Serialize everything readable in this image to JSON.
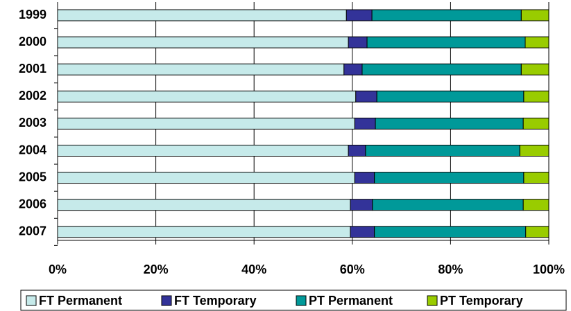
{
  "chart_data": {
    "type": "stacked-bar-horizontal",
    "categories": [
      "1999",
      "2000",
      "2001",
      "2002",
      "2003",
      "2004",
      "2005",
      "2006",
      "2007"
    ],
    "series": [
      {
        "name": "FT Permanent",
        "color": "#c6eaea",
        "values": [
          58.8,
          59.2,
          58.3,
          60.7,
          60.5,
          59.2,
          60.5,
          59.6,
          59.6
        ]
      },
      {
        "name": "FT Temporary",
        "color": "#333399",
        "values": [
          5.2,
          3.8,
          3.7,
          4.3,
          4.2,
          3.5,
          4.0,
          4.5,
          4.9
        ]
      },
      {
        "name": "PT Permanent",
        "color": "#009999",
        "values": [
          30.4,
          32.2,
          32.4,
          29.9,
          30.1,
          31.4,
          30.4,
          30.7,
          30.8
        ]
      },
      {
        "name": "PT Temporary",
        "color": "#99cc00",
        "values": [
          5.6,
          4.8,
          5.6,
          5.1,
          5.2,
          5.9,
          5.1,
          5.2,
          4.7
        ]
      }
    ],
    "xlim": [
      0,
      100
    ],
    "xticks": [
      {
        "value": 0,
        "label": "0%"
      },
      {
        "value": 20,
        "label": "20%"
      },
      {
        "value": 40,
        "label": "40%"
      },
      {
        "value": 60,
        "label": "60%"
      },
      {
        "value": 80,
        "label": "80%"
      },
      {
        "value": 100,
        "label": "100%"
      }
    ],
    "grid": true,
    "legend": "bottom"
  }
}
